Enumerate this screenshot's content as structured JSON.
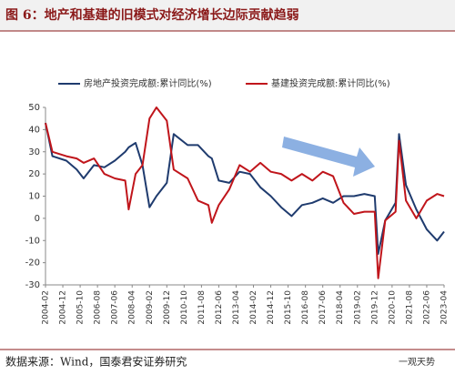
{
  "chart_data": {
    "type": "line",
    "title": "图 6：地产和基建的旧模式对经济增长边际贡献趋弱",
    "source": "数据来源：Wind，国泰君安证券研究",
    "watermark": "一观天势",
    "x": [
      "2004-02",
      "2004-06",
      "2005-02",
      "2005-08",
      "2005-12",
      "2006-06",
      "2006-12",
      "2007-06",
      "2007-12",
      "2008-02",
      "2008-06",
      "2008-10",
      "2009-02",
      "2009-06",
      "2009-12",
      "2010-04",
      "2010-12",
      "2011-06",
      "2011-12",
      "2012-02",
      "2012-06",
      "2012-12",
      "2013-06",
      "2013-12",
      "2014-06",
      "2014-12",
      "2015-06",
      "2015-12",
      "2016-06",
      "2016-12",
      "2017-06",
      "2017-12",
      "2018-06",
      "2018-12",
      "2019-06",
      "2019-12",
      "2020-02",
      "2020-06",
      "2020-12",
      "2021-02",
      "2021-06",
      "2021-12",
      "2022-06",
      "2022-12",
      "2023-04"
    ],
    "series": [
      {
        "name": "房地产投资完成额:累计同比(%)",
        "color": "#1f3b6e",
        "values": [
          43,
          28,
          26,
          22,
          18,
          24,
          23,
          26,
          30,
          32,
          34,
          24,
          5,
          10,
          16,
          38,
          33,
          33,
          28,
          27,
          17,
          16,
          21,
          20,
          14,
          10,
          5,
          1,
          6,
          7,
          9,
          7,
          10,
          10,
          11,
          10,
          -16,
          -1,
          7,
          38,
          15,
          4,
          -5,
          -10,
          -6
        ]
      },
      {
        "name": "基建投资完成额:累计同比(%)",
        "color": "#c0151b",
        "values": [
          43,
          30,
          28,
          27,
          25,
          27,
          20,
          18,
          17,
          4,
          20,
          24,
          45,
          50,
          44,
          22,
          18,
          8,
          6,
          -2,
          6,
          13,
          24,
          21,
          25,
          21,
          20,
          17,
          20,
          17,
          21,
          19,
          7,
          2,
          3,
          3,
          -27,
          -1,
          3,
          35,
          8,
          0,
          8,
          11,
          10
        ]
      }
    ],
    "xlim": [
      "2004-02",
      "2023-04"
    ],
    "xticks": [
      "2004-02",
      "2004-12",
      "2005-10",
      "2006-08",
      "2007-06",
      "2008-04",
      "2009-02",
      "2009-12",
      "2010-10",
      "2011-08",
      "2012-06",
      "2013-04",
      "2014-02",
      "2014-12",
      "2015-10",
      "2016-08",
      "2017-06",
      "2018-04",
      "2019-02",
      "2019-12",
      "2020-10",
      "2021-08",
      "2022-06",
      "2023-04"
    ],
    "ylim": [
      -30,
      50
    ],
    "yticks": [
      -30,
      -20,
      -10,
      0,
      10,
      20,
      30,
      40,
      50
    ],
    "grid": false,
    "legend": "top"
  }
}
